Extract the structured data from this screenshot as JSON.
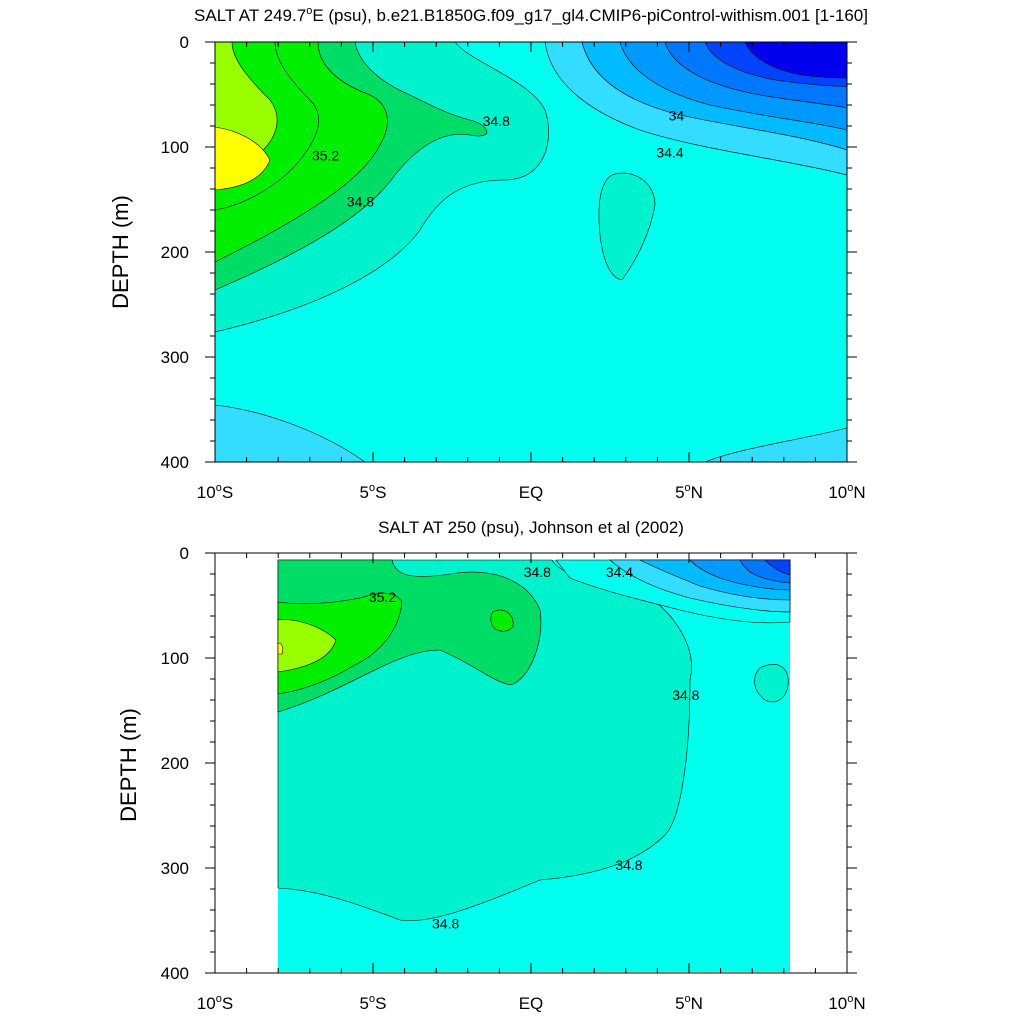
{
  "figure": {
    "colors": {
      "c1": "#ffff00",
      "c2": "#99ff00",
      "c3": "#00ee00",
      "c4": "#00dd66",
      "c5": "#00f2cc",
      "c6": "#00ffee",
      "c7": "#33ddff",
      "c8": "#00bbff",
      "c9": "#0099ff",
      "c10": "#0077ff",
      "c11": "#0044ff",
      "c12": "#0000ee"
    }
  },
  "chart_data": [
    {
      "type": "contour",
      "title": "SALT AT 249.7°E (psu), b.e21.B1850G.f09_g17_gl4.CMIP6-piControl-withism.001 [1-160]",
      "title_parts": {
        "pre": "SALT AT 249.7",
        "sup": "o",
        "post": "E (psu), b.e21.B1850G.f09_g17_gl4.CMIP6-piControl-withism.001 [1-160]"
      },
      "ylabel": "DEPTH (m)",
      "xlabel": "",
      "x_range": [
        -10,
        10
      ],
      "y_range": [
        0,
        400
      ],
      "y_reversed": true,
      "x_ticks": [
        {
          "value": -10,
          "pre": "10",
          "sup": "o",
          "post": "S"
        },
        {
          "value": -5,
          "pre": "5",
          "sup": "o",
          "post": "S"
        },
        {
          "value": 0,
          "pre": "EQ",
          "sup": "",
          "post": ""
        },
        {
          "value": 5,
          "pre": "5",
          "sup": "o",
          "post": "N"
        },
        {
          "value": 10,
          "pre": "10",
          "sup": "o",
          "post": "N"
        }
      ],
      "y_ticks": [
        "0",
        "100",
        "200",
        "300",
        "400"
      ],
      "y_tick_values": [
        0,
        100,
        200,
        300,
        400
      ],
      "contour_labels": [
        {
          "text": "35.2",
          "x": -6.5,
          "y": 108
        },
        {
          "text": "34.8",
          "x": -1.1,
          "y": 75
        },
        {
          "text": "34.8",
          "x": -5.4,
          "y": 152
        },
        {
          "text": "34",
          "x": 4.6,
          "y": 70
        },
        {
          "text": "34.4",
          "x": 4.4,
          "y": 105
        }
      ]
    },
    {
      "type": "contour",
      "title": "SALT AT 250 (psu), Johnson et al (2002)",
      "title_parts": {
        "pre": "SALT AT 250 (psu), Johnson et al (2002)",
        "sup": "",
        "post": ""
      },
      "ylabel": "DEPTH (m)",
      "xlabel": "",
      "x_range": [
        -10,
        10
      ],
      "y_range": [
        0,
        400
      ],
      "y_reversed": true,
      "data_x_extent": [
        -8,
        8.2
      ],
      "x_ticks": [
        {
          "value": -10,
          "pre": "10",
          "sup": "o",
          "post": "S"
        },
        {
          "value": -5,
          "pre": "5",
          "sup": "o",
          "post": "S"
        },
        {
          "value": 0,
          "pre": "EQ",
          "sup": "",
          "post": ""
        },
        {
          "value": 5,
          "pre": "5",
          "sup": "o",
          "post": "N"
        },
        {
          "value": 10,
          "pre": "10",
          "sup": "o",
          "post": "N"
        }
      ],
      "y_ticks": [
        "0",
        "100",
        "200",
        "300",
        "400"
      ],
      "y_tick_values": [
        0,
        100,
        200,
        300,
        400
      ],
      "contour_labels": [
        {
          "text": "35.2",
          "x": -4.7,
          "y": 42
        },
        {
          "text": "34.8",
          "x": 0.2,
          "y": 18
        },
        {
          "text": "34.4",
          "x": 2.8,
          "y": 18
        },
        {
          "text": "34.8",
          "x": 4.9,
          "y": 135
        },
        {
          "text": "34.8",
          "x": 3.1,
          "y": 297
        },
        {
          "text": "34.8",
          "x": -2.7,
          "y": 353
        }
      ]
    }
  ]
}
